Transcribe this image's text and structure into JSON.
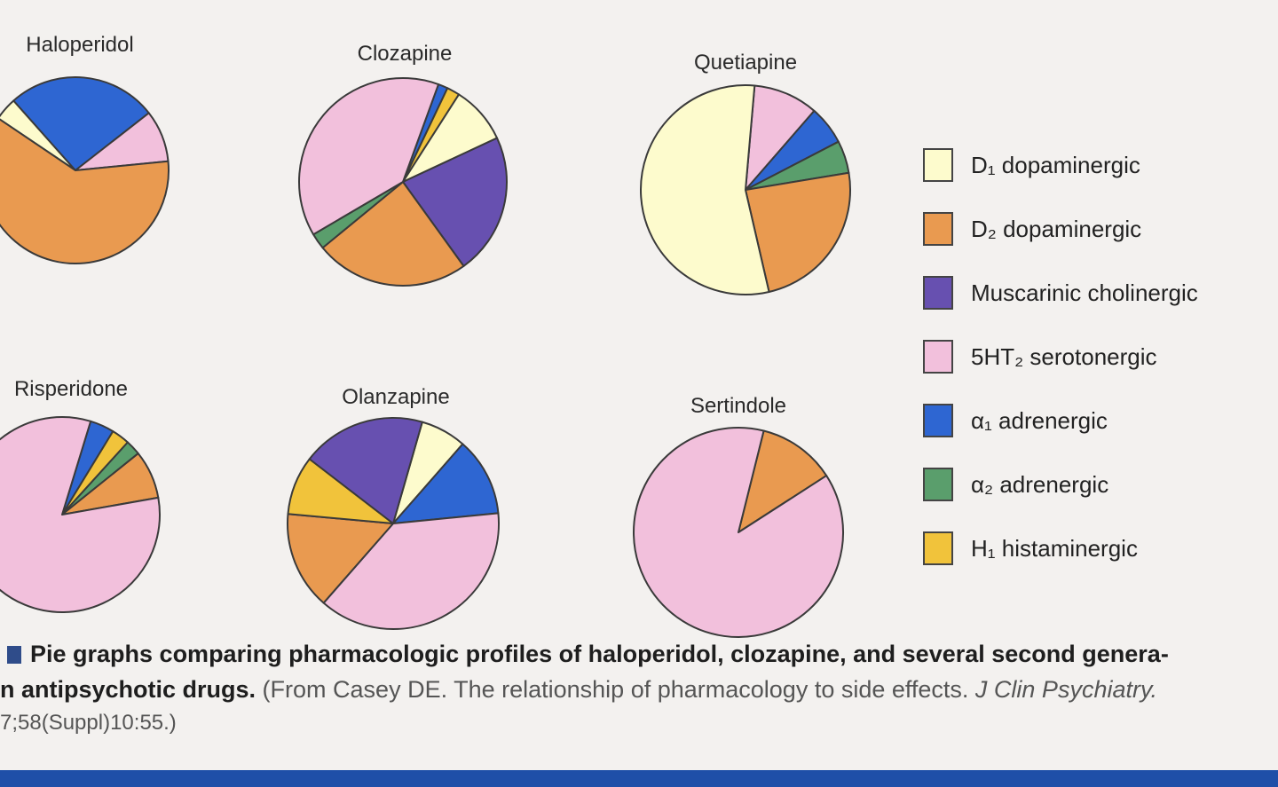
{
  "legend": {
    "d1": {
      "label": "D₁ dopaminergic",
      "color": "#fdfbcd"
    },
    "d2": {
      "label": "D₂ dopaminergic",
      "color": "#e99a50"
    },
    "musc": {
      "label": "Muscarinic cholinergic",
      "color": "#6750b0"
    },
    "ht2": {
      "label": "5HT₂ serotonergic",
      "color": "#f2c0dc"
    },
    "a1": {
      "label": "α₁ adrenergic",
      "color": "#2e66d2"
    },
    "a2": {
      "label": "α₂ adrenergic",
      "color": "#5a9e6c"
    },
    "h1": {
      "label": "H₁ histaminergic",
      "color": "#f1c33b"
    }
  },
  "chart_data": [
    {
      "type": "pie",
      "title": "Haloperidol",
      "slices": [
        {
          "key": "d1",
          "value": 4
        },
        {
          "key": "a1",
          "value": 26
        },
        {
          "key": "ht2",
          "value": 9
        },
        {
          "key": "d2",
          "value": 61
        }
      ]
    },
    {
      "type": "pie",
      "title": "Clozapine",
      "slices": [
        {
          "key": "a1",
          "value": 1.5
        },
        {
          "key": "h1",
          "value": 2
        },
        {
          "key": "d1",
          "value": 9
        },
        {
          "key": "musc",
          "value": 22
        },
        {
          "key": "d2",
          "value": 24
        },
        {
          "key": "a2",
          "value": 2.5
        },
        {
          "key": "ht2",
          "value": 39
        }
      ]
    },
    {
      "type": "pie",
      "title": "Quetiapine",
      "slices": [
        {
          "key": "ht2",
          "value": 10
        },
        {
          "key": "a1",
          "value": 6
        },
        {
          "key": "a2",
          "value": 5
        },
        {
          "key": "d2",
          "value": 24
        },
        {
          "key": "d1",
          "value": 55
        }
      ]
    },
    {
      "type": "pie",
      "title": "Risperidone",
      "slices": [
        {
          "key": "a1",
          "value": 4
        },
        {
          "key": "h1",
          "value": 3
        },
        {
          "key": "a2",
          "value": 2.5
        },
        {
          "key": "d2",
          "value": 8
        },
        {
          "key": "ht2",
          "value": 82.5
        }
      ]
    },
    {
      "type": "pie",
      "title": "Olanzapine",
      "slices": [
        {
          "key": "d1",
          "value": 7
        },
        {
          "key": "a1",
          "value": 12
        },
        {
          "key": "ht2",
          "value": 38
        },
        {
          "key": "d2",
          "value": 15
        },
        {
          "key": "h1",
          "value": 9
        },
        {
          "key": "musc",
          "value": 19
        }
      ]
    },
    {
      "type": "pie",
      "title": "Sertindole",
      "slices": [
        {
          "key": "d2",
          "value": 12
        },
        {
          "key": "ht2",
          "value": 88
        }
      ]
    }
  ],
  "caption": {
    "line1": "Pie graphs comparing pharmacologic profiles of haloperidol, clozapine, and several second genera-",
    "line2_bold": "n antipsychotic drugs.",
    "line2_src": " (From Casey DE. The relationship of pharmacology to side effects. ",
    "line2_journal": "J Clin Psychiatry.",
    "line3": "7;58(Suppl)10:55.)"
  }
}
